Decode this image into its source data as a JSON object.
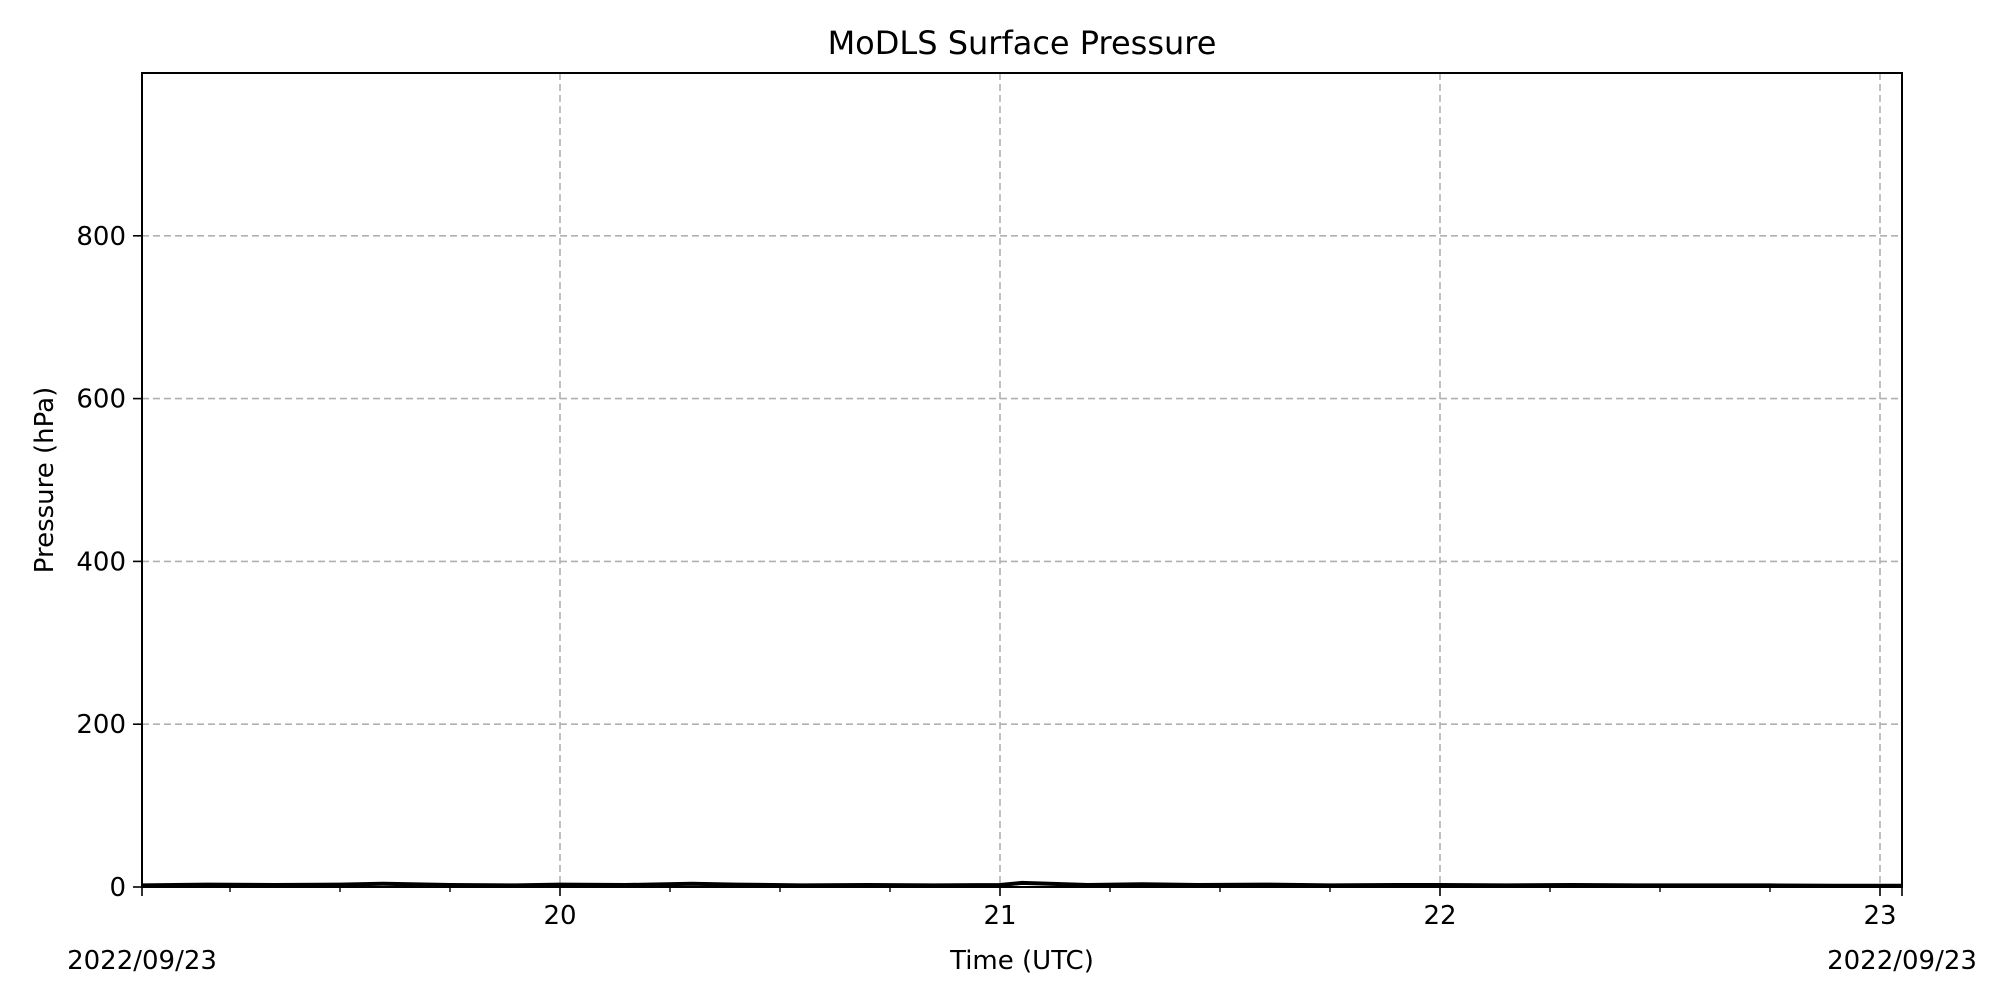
{
  "chart_data": {
    "type": "line",
    "title": "MoDLS Surface Pressure",
    "xlabel": "Time (UTC)",
    "ylabel": "Pressure (hPa)",
    "x_unit": "hour (UTC) on 2022/09/23",
    "xlim": [
      19.05,
      23.05
    ],
    "ylim": [
      0,
      1000
    ],
    "grid": true,
    "legend": "none",
    "x_major_ticks": [
      {
        "value": 20,
        "label": "20"
      },
      {
        "value": 21,
        "label": "21"
      },
      {
        "value": 22,
        "label": "22"
      },
      {
        "value": 23,
        "label": "23"
      }
    ],
    "y_ticks": [
      {
        "value": 0,
        "label": "0"
      },
      {
        "value": 200,
        "label": "200"
      },
      {
        "value": 400,
        "label": "400"
      },
      {
        "value": 600,
        "label": "600"
      },
      {
        "value": 800,
        "label": "800"
      }
    ],
    "date_labels": {
      "left": "2022/09/23",
      "right": "2022/09/23"
    },
    "series": [
      {
        "color": "#000000",
        "x": [
          19.05,
          19.2,
          19.35,
          19.5,
          19.6,
          19.75,
          19.9,
          20.0,
          20.15,
          20.3,
          20.4,
          20.55,
          20.7,
          20.85,
          21.0,
          21.05,
          21.2,
          21.32,
          21.45,
          21.6,
          21.75,
          21.9,
          22.0,
          22.15,
          22.3,
          22.45,
          22.6,
          22.75,
          22.9,
          23.05
        ],
        "y": [
          2,
          3,
          2.5,
          3,
          4,
          2.5,
          2,
          3,
          2.5,
          4,
          3,
          2,
          2.5,
          2,
          2.5,
          5,
          2.5,
          3.5,
          2.5,
          3,
          2,
          2.5,
          2.5,
          2,
          2.5,
          2,
          2,
          2,
          1.5,
          1.5
        ]
      }
    ]
  }
}
